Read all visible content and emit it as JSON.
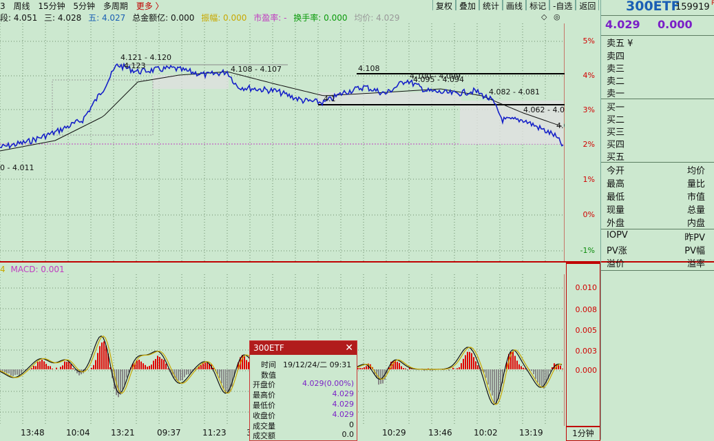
{
  "menu": {
    "items": [
      "3",
      "周线",
      "15分钟",
      "5分钟",
      "多周期"
    ],
    "more": "更多 〉"
  },
  "toolbar": {
    "buttons": [
      "复权",
      "叠加",
      "统计",
      "画线",
      "标记",
      "-自选",
      "返回"
    ]
  },
  "info": {
    "seg1": "段: 4.051",
    "seg2": "三: 4.028",
    "seg3": "五: 4.027",
    "amount": "总金额亿: 0.000",
    "amplitude": "振幅: 0.000",
    "pe_label": "市盈率: -",
    "turnover": "换手率: 0.000",
    "avg": "均价: 4.029"
  },
  "chart_annotations": [
    "4.121 - 4.120",
    "4.123",
    "4.108 - 4.107",
    "4.108",
    "4.100 - 4.099",
    "4.095 - 4.094",
    "4.082 - 4.081",
    "4.062 - 4.0",
    "4.0",
    "4.1",
    "0 - 4.011"
  ],
  "pct_axis": [
    "5%",
    "4%",
    "3%",
    "2%",
    "1%",
    "0%",
    "-1%"
  ],
  "macd": {
    "label_a": "4",
    "label": "MACD: 0.001",
    "axis": [
      "0.010",
      "0.008",
      "0.005",
      "0.003",
      "0.000"
    ]
  },
  "time_axis": [
    "13:48",
    "10:04",
    "13:21",
    "09:37",
    "11:23",
    "3",
    "10:29",
    "13:46",
    "10:02",
    "13:19"
  ],
  "period": "1分钟",
  "right_panel": {
    "code": "300ETF",
    "sub": "159919",
    "hs": "R",
    "price": "4.029",
    "change": "0.000",
    "sell": [
      "卖五 ¥",
      "卖四",
      "卖三",
      "卖二",
      "卖一"
    ],
    "buy": [
      "买一",
      "买二",
      "买三",
      "买四",
      "买五"
    ],
    "stats_left": [
      "今开",
      "最高",
      "最低",
      "现量",
      "外盘"
    ],
    "stats_right": [
      "均价",
      "量比",
      "市值",
      "总量",
      "内盘"
    ],
    "iopv_left": [
      "IOPV",
      "PV涨",
      "溢价"
    ],
    "iopv_right": [
      "昨PV",
      "PV幅",
      "溢率"
    ]
  },
  "tooltip": {
    "title": "300ETF",
    "close": "✕",
    "time_label": "时间",
    "time": "19/12/24/二  09:31",
    "value_label": "数值",
    "rows": [
      {
        "k": "开盘价",
        "v": "4.029(0.00%)"
      },
      {
        "k": "最高价",
        "v": "4.029"
      },
      {
        "k": "最低价",
        "v": "4.029"
      },
      {
        "k": "收盘价",
        "v": "4.029"
      },
      {
        "k": "成交量",
        "v": "0"
      },
      {
        "k": "成交额",
        "v": "0.0"
      }
    ]
  },
  "colors": {
    "bg": "#cce8cf",
    "price": "#1520c8",
    "avg": "#111111",
    "up": "#e00000",
    "down": "#888888",
    "axis_red": "#d10000"
  }
}
